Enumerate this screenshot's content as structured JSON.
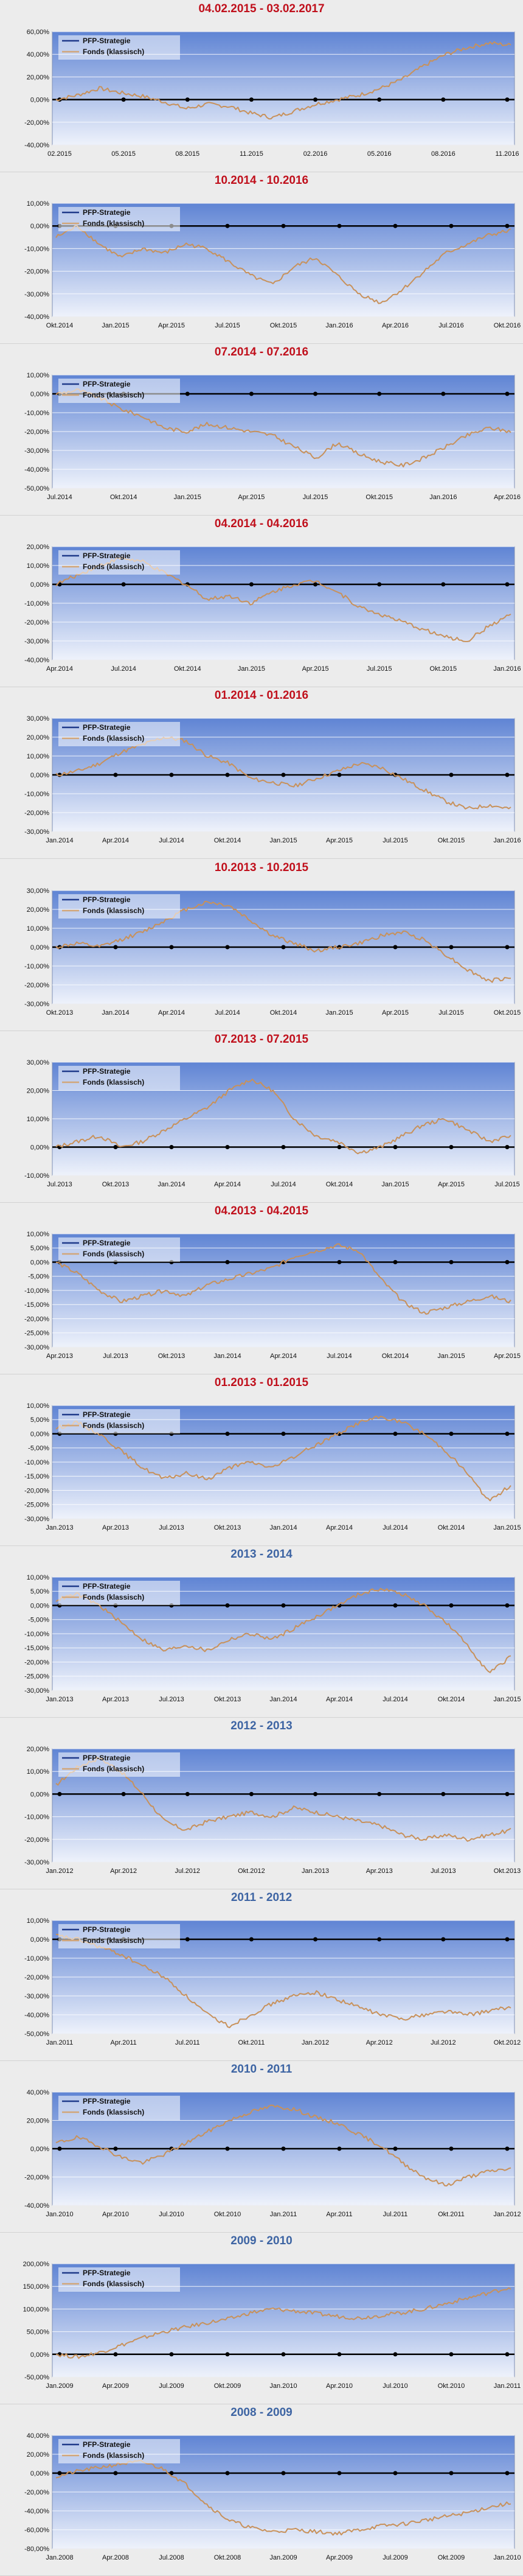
{
  "colors": {
    "title_red": "#c0101c",
    "title_blue": "#3d64a3",
    "plot_top": "#5f84d4",
    "plot_bottom": "#eef2fb",
    "fund_line": "#c8915a",
    "strategy_line": "#000000",
    "legend_line_strategy": "#1f3a8a",
    "legend_line_fund": "#d2a679",
    "gridline": "#ffffff"
  },
  "legend_icons": [
    "line-icon-strategy",
    "line-icon-fund"
  ],
  "chart_data": [
    {
      "type": "line",
      "title": "04.02.2015 - 03.02.2017",
      "title_color": "red",
      "yticks": [
        "60,00%",
        "40,00%",
        "20,00%",
        "0,00%",
        "-20,00%",
        "-40,00%"
      ],
      "ylim": [
        -40,
        60
      ],
      "xticks": [
        "02.2015",
        "05.2015",
        "08.2015",
        "11.2015",
        "02.2016",
        "05.2016",
        "08.2016",
        "11.2016"
      ],
      "legend": [
        "PFP-Strategie",
        "Fonds (klassisch)"
      ],
      "series": [
        {
          "name": "PFP-Strategie",
          "values": [
            0,
            0
          ]
        },
        {
          "name": "Fonds (klassisch)",
          "values": [
            0,
            4,
            10,
            6,
            3,
            -2,
            -8,
            -4,
            -6,
            -12,
            -16,
            -10,
            -4,
            0,
            4,
            10,
            18,
            30,
            40,
            46,
            50,
            48
          ]
        }
      ]
    },
    {
      "type": "line",
      "title": "10.2014 - 10.2016",
      "title_color": "red",
      "yticks": [
        "10,00%",
        "0,00%",
        "-10,00%",
        "-20,00%",
        "-30,00%",
        "-40,00%"
      ],
      "ylim": [
        -40,
        10
      ],
      "xticks": [
        "Okt.2014",
        "Jan.2015",
        "Apr.2015",
        "Jul.2015",
        "Okt.2015",
        "Jan.2016",
        "Apr.2016",
        "Jul.2016",
        "Okt.2016"
      ],
      "legend": [
        "PFP-Strategie",
        "Fonds (klassisch)"
      ],
      "series": [
        {
          "name": "PFP-Strategie",
          "values": [
            0,
            0
          ]
        },
        {
          "name": "Fonds (klassisch)",
          "values": [
            -5,
            0,
            -8,
            -14,
            -10,
            -12,
            -8,
            -10,
            -16,
            -22,
            -26,
            -18,
            -14,
            -22,
            -30,
            -34,
            -28,
            -20,
            -12,
            -8,
            -4,
            -2
          ]
        }
      ]
    },
    {
      "type": "line",
      "title": "07.2014 - 07.2016",
      "title_color": "red",
      "yticks": [
        "10,00%",
        "0,00%",
        "-10,00%",
        "-20,00%",
        "-30,00%",
        "-40,00%",
        "-50,00%"
      ],
      "ylim": [
        -50,
        10
      ],
      "xticks": [
        "Jul.2014",
        "Okt.2014",
        "Jan.2015",
        "Apr.2015",
        "Jul.2015",
        "Okt.2015",
        "Jan.2016",
        "Apr.2016"
      ],
      "legend": [
        "PFP-Strategie",
        "Fonds (klassisch)"
      ],
      "series": [
        {
          "name": "PFP-Strategie",
          "values": [
            0,
            0
          ]
        },
        {
          "name": "Fonds (klassisch)",
          "values": [
            0,
            2,
            -2,
            -8,
            -12,
            -18,
            -20,
            -16,
            -18,
            -20,
            -22,
            -28,
            -34,
            -26,
            -32,
            -36,
            -38,
            -34,
            -28,
            -22,
            -18,
            -20
          ]
        }
      ]
    },
    {
      "type": "line",
      "title": "04.2014 - 04.2016",
      "title_color": "red",
      "yticks": [
        "20,00%",
        "10,00%",
        "0,00%",
        "-10,00%",
        "-20,00%",
        "-30,00%",
        "-40,00%"
      ],
      "ylim": [
        -40,
        20
      ],
      "xticks": [
        "Apr.2014",
        "Jul.2014",
        "Okt.2014",
        "Jan.2015",
        "Apr.2015",
        "Jul.2015",
        "Okt.2015",
        "Jan.2016"
      ],
      "legend": [
        "PFP-Strategie",
        "Fonds (klassisch)"
      ],
      "series": [
        {
          "name": "PFP-Strategie",
          "values": [
            0,
            0
          ]
        },
        {
          "name": "Fonds (klassisch)",
          "values": [
            0,
            5,
            10,
            14,
            12,
            6,
            0,
            -8,
            -6,
            -10,
            -4,
            0,
            2,
            -4,
            -12,
            -16,
            -20,
            -24,
            -28,
            -30,
            -22,
            -16
          ]
        }
      ]
    },
    {
      "type": "line",
      "title": "01.2014 - 01.2016",
      "title_color": "red",
      "yticks": [
        "30,00%",
        "20,00%",
        "10,00%",
        "0,00%",
        "-10,00%",
        "-20,00%",
        "-30,00%"
      ],
      "ylim": [
        -30,
        30
      ],
      "xticks": [
        "Jan.2014",
        "Apr.2014",
        "Jul.2014",
        "Okt.2014",
        "Jan.2015",
        "Apr.2015",
        "Jul.2015",
        "Okt.2015",
        "Jan.2016"
      ],
      "legend": [
        "PFP-Strategie",
        "Fonds (klassisch)"
      ],
      "series": [
        {
          "name": "PFP-Strategie",
          "values": [
            0,
            0
          ]
        },
        {
          "name": "Fonds (klassisch)",
          "values": [
            0,
            2,
            6,
            12,
            16,
            20,
            18,
            10,
            6,
            -2,
            -4,
            -6,
            -2,
            2,
            6,
            4,
            -2,
            -8,
            -14,
            -18,
            -16,
            -18
          ]
        }
      ]
    },
    {
      "type": "line",
      "title": "10.2013 - 10.2015",
      "title_color": "red",
      "yticks": [
        "30,00%",
        "20,00%",
        "10,00%",
        "0,00%",
        "-10,00%",
        "-20,00%",
        "-30,00%"
      ],
      "ylim": [
        -30,
        30
      ],
      "xticks": [
        "Okt.2013",
        "Jan.2014",
        "Apr.2014",
        "Jul.2014",
        "Okt.2014",
        "Jan.2015",
        "Apr.2015",
        "Jul.2015",
        "Okt.2015"
      ],
      "legend": [
        "PFP-Strategie",
        "Fonds (klassisch)"
      ],
      "series": [
        {
          "name": "PFP-Strategie",
          "values": [
            0,
            0
          ]
        },
        {
          "name": "Fonds (klassisch)",
          "values": [
            0,
            2,
            0,
            4,
            8,
            14,
            20,
            24,
            22,
            14,
            6,
            2,
            -2,
            0,
            2,
            6,
            8,
            4,
            -4,
            -12,
            -18,
            -16
          ]
        }
      ]
    },
    {
      "type": "line",
      "title": "07.2013 - 07.2015",
      "title_color": "red",
      "yticks": [
        "30,00%",
        "20,00%",
        "10,00%",
        "0,00%",
        "-10,00%"
      ],
      "ylim": [
        -10,
        30
      ],
      "xticks": [
        "Jul.2013",
        "Okt.2013",
        "Jan.2014",
        "Apr.2014",
        "Jul.2014",
        "Okt.2014",
        "Jan.2015",
        "Apr.2015",
        "Jul.2015"
      ],
      "legend": [
        "PFP-Strategie",
        "Fonds (klassisch)"
      ],
      "series": [
        {
          "name": "PFP-Strategie",
          "values": [
            0,
            0
          ]
        },
        {
          "name": "Fonds (klassisch)",
          "values": [
            0,
            2,
            4,
            0,
            2,
            6,
            10,
            14,
            20,
            24,
            20,
            10,
            4,
            2,
            -2,
            0,
            4,
            8,
            10,
            6,
            2,
            4
          ]
        }
      ]
    },
    {
      "type": "line",
      "title": "04.2013 - 04.2015",
      "title_color": "red",
      "yticks": [
        "10,00%",
        "5,00%",
        "0,00%",
        "-5,00%",
        "-10,00%",
        "-15,00%",
        "-20,00%",
        "-25,00%",
        "-30,00%"
      ],
      "ylim": [
        -30,
        10
      ],
      "xticks": [
        "Apr.2013",
        "Jul.2013",
        "Okt.2013",
        "Jan.2014",
        "Apr.2014",
        "Jul.2014",
        "Okt.2014",
        "Jan.2015",
        "Apr.2015"
      ],
      "legend": [
        "PFP-Strategie",
        "Fonds (klassisch)"
      ],
      "series": [
        {
          "name": "PFP-Strategie",
          "values": [
            0,
            0
          ]
        },
        {
          "name": "Fonds (klassisch)",
          "values": [
            0,
            -4,
            -10,
            -14,
            -12,
            -10,
            -12,
            -8,
            -6,
            -4,
            -2,
            2,
            4,
            6,
            4,
            -6,
            -14,
            -18,
            -16,
            -14,
            -12,
            -14
          ]
        }
      ]
    },
    {
      "type": "line",
      "title": "01.2013 - 01.2015",
      "title_color": "red",
      "yticks": [
        "10,00%",
        "5,00%",
        "0,00%",
        "-5,00%",
        "-10,00%",
        "-15,00%",
        "-20,00%",
        "-25,00%",
        "-30,00%"
      ],
      "ylim": [
        -30,
        10
      ],
      "xticks": [
        "Jan.2013",
        "Apr.2013",
        "Jul.2013",
        "Okt.2013",
        "Jan.2014",
        "Apr.2014",
        "Jul.2014",
        "Okt.2014",
        "Jan.2015"
      ],
      "legend": [
        "PFP-Strategie",
        "Fonds (klassisch)"
      ],
      "series": [
        {
          "name": "PFP-Strategie",
          "values": [
            0,
            0
          ]
        },
        {
          "name": "Fonds (klassisch)",
          "values": [
            2,
            4,
            0,
            -6,
            -12,
            -16,
            -14,
            -16,
            -12,
            -10,
            -12,
            -8,
            -4,
            0,
            4,
            6,
            4,
            0,
            -6,
            -14,
            -24,
            -18
          ]
        }
      ]
    },
    {
      "type": "line",
      "title": "2013 - 2014",
      "title_color": "blue",
      "yticks": [
        "10,00%",
        "5,00%",
        "0,00%",
        "-5,00%",
        "-10,00%",
        "-15,00%",
        "-20,00%",
        "-25,00%",
        "-30,00%"
      ],
      "ylim": [
        -30,
        10
      ],
      "xticks": [
        "Jan.2013",
        "Apr.2013",
        "Jul.2013",
        "Okt.2013",
        "Jan.2014",
        "Apr.2014",
        "Jul.2014",
        "Okt.2014",
        "Jan.2015"
      ],
      "legend": [
        "PFP-Strategie",
        "Fonds (klassisch)"
      ],
      "series": [
        {
          "name": "PFP-Strategie",
          "values": [
            0,
            0
          ]
        },
        {
          "name": "Fonds (klassisch)",
          "values": [
            2,
            4,
            0,
            -6,
            -12,
            -16,
            -14,
            -16,
            -12,
            -10,
            -12,
            -8,
            -4,
            0,
            4,
            6,
            4,
            0,
            -6,
            -14,
            -24,
            -18
          ]
        }
      ]
    },
    {
      "type": "line",
      "title": "2012 - 2013",
      "title_color": "blue",
      "yticks": [
        "20,00%",
        "10,00%",
        "0,00%",
        "-10,00%",
        "-20,00%",
        "-30,00%"
      ],
      "ylim": [
        -30,
        20
      ],
      "xticks": [
        "Jan.2012",
        "Apr.2012",
        "Jul.2012",
        "Okt.2012",
        "Jan.2013",
        "Apr.2013",
        "Jul.2013",
        "Okt.2013"
      ],
      "legend": [
        "PFP-Strategie",
        "Fonds (klassisch)"
      ],
      "series": [
        {
          "name": "PFP-Strategie",
          "values": [
            0,
            0
          ]
        },
        {
          "name": "Fonds (klassisch)",
          "values": [
            4,
            12,
            16,
            10,
            0,
            -12,
            -16,
            -12,
            -10,
            -8,
            -10,
            -6,
            -8,
            -10,
            -12,
            -14,
            -18,
            -20,
            -18,
            -20,
            -18,
            -16
          ]
        }
      ]
    },
    {
      "type": "line",
      "title": "2011 - 2012",
      "title_color": "blue",
      "yticks": [
        "10,00%",
        "0,00%",
        "-10,00%",
        "-20,00%",
        "-30,00%",
        "-40,00%",
        "-50,00%"
      ],
      "ylim": [
        -50,
        10
      ],
      "xticks": [
        "Jan.2011",
        "Apr.2011",
        "Jul.2011",
        "Okt.2011",
        "Jan.2012",
        "Apr.2012",
        "Jul.2012",
        "Okt.2012"
      ],
      "legend": [
        "PFP-Strategie",
        "Fonds (klassisch)"
      ],
      "series": [
        {
          "name": "PFP-Strategie",
          "values": [
            0,
            0
          ]
        },
        {
          "name": "Fonds (klassisch)",
          "values": [
            2,
            0,
            -4,
            -8,
            -14,
            -20,
            -30,
            -40,
            -46,
            -40,
            -34,
            -30,
            -28,
            -32,
            -36,
            -40,
            -42,
            -40,
            -38,
            -40,
            -38,
            -36
          ]
        }
      ]
    },
    {
      "type": "line",
      "title": "2010 - 2011",
      "title_color": "blue",
      "yticks": [
        "40,00%",
        "20,00%",
        "0,00%",
        "-20,00%",
        "-40,00%"
      ],
      "ylim": [
        -40,
        40
      ],
      "xticks": [
        "Jan.2010",
        "Apr.2010",
        "Jul.2010",
        "Okt.2010",
        "Jan.2011",
        "Apr.2011",
        "Jul.2011",
        "Okt.2011",
        "Jan.2012"
      ],
      "legend": [
        "PFP-Strategie",
        "Fonds (klassisch)"
      ],
      "series": [
        {
          "name": "PFP-Strategie",
          "values": [
            0,
            0
          ]
        },
        {
          "name": "Fonds (klassisch)",
          "values": [
            4,
            8,
            2,
            -6,
            -10,
            -4,
            4,
            12,
            20,
            26,
            30,
            28,
            22,
            18,
            10,
            2,
            -10,
            -20,
            -26,
            -20,
            -16,
            -14
          ]
        }
      ]
    },
    {
      "type": "line",
      "title": "2009 - 2010",
      "title_color": "blue",
      "yticks": [
        "200,00%",
        "150,00%",
        "100,00%",
        "50,00%",
        "0,00%",
        "-50,00%"
      ],
      "ylim": [
        -50,
        200
      ],
      "xticks": [
        "Jan.2009",
        "Apr.2009",
        "Jul.2009",
        "Okt.2009",
        "Jan.2010",
        "Apr.2010",
        "Jul.2010",
        "Okt.2010",
        "Jan.2011"
      ],
      "legend": [
        "PFP-Strategie",
        "Fonds (klassisch)"
      ],
      "series": [
        {
          "name": "PFP-Strategie",
          "values": [
            0,
            0
          ]
        },
        {
          "name": "Fonds (klassisch)",
          "values": [
            0,
            -6,
            4,
            20,
            36,
            50,
            60,
            70,
            78,
            92,
            100,
            96,
            90,
            84,
            80,
            86,
            92,
            100,
            112,
            124,
            136,
            148
          ]
        }
      ]
    },
    {
      "type": "line",
      "title": "2008 - 2009",
      "title_color": "blue",
      "yticks": [
        "40,00%",
        "20,00%",
        "0,00%",
        "-20,00%",
        "-40,00%",
        "-60,00%",
        "-80,00%"
      ],
      "ylim": [
        -80,
        40
      ],
      "xticks": [
        "Jan.2008",
        "Apr.2008",
        "Jul.2008",
        "Okt.2008",
        "Jan.2009",
        "Apr.2009",
        "Jul.2009",
        "Okt.2009",
        "Jan.2010"
      ],
      "legend": [
        "PFP-Strategie",
        "Fonds (klassisch)"
      ],
      "series": [
        {
          "name": "PFP-Strategie",
          "values": [
            0,
            0
          ]
        },
        {
          "name": "Fonds (klassisch)",
          "values": [
            -4,
            2,
            6,
            10,
            12,
            4,
            -12,
            -34,
            -50,
            -58,
            -62,
            -60,
            -62,
            -64,
            -60,
            -56,
            -54,
            -50,
            -46,
            -42,
            -36,
            -32
          ]
        }
      ]
    }
  ]
}
